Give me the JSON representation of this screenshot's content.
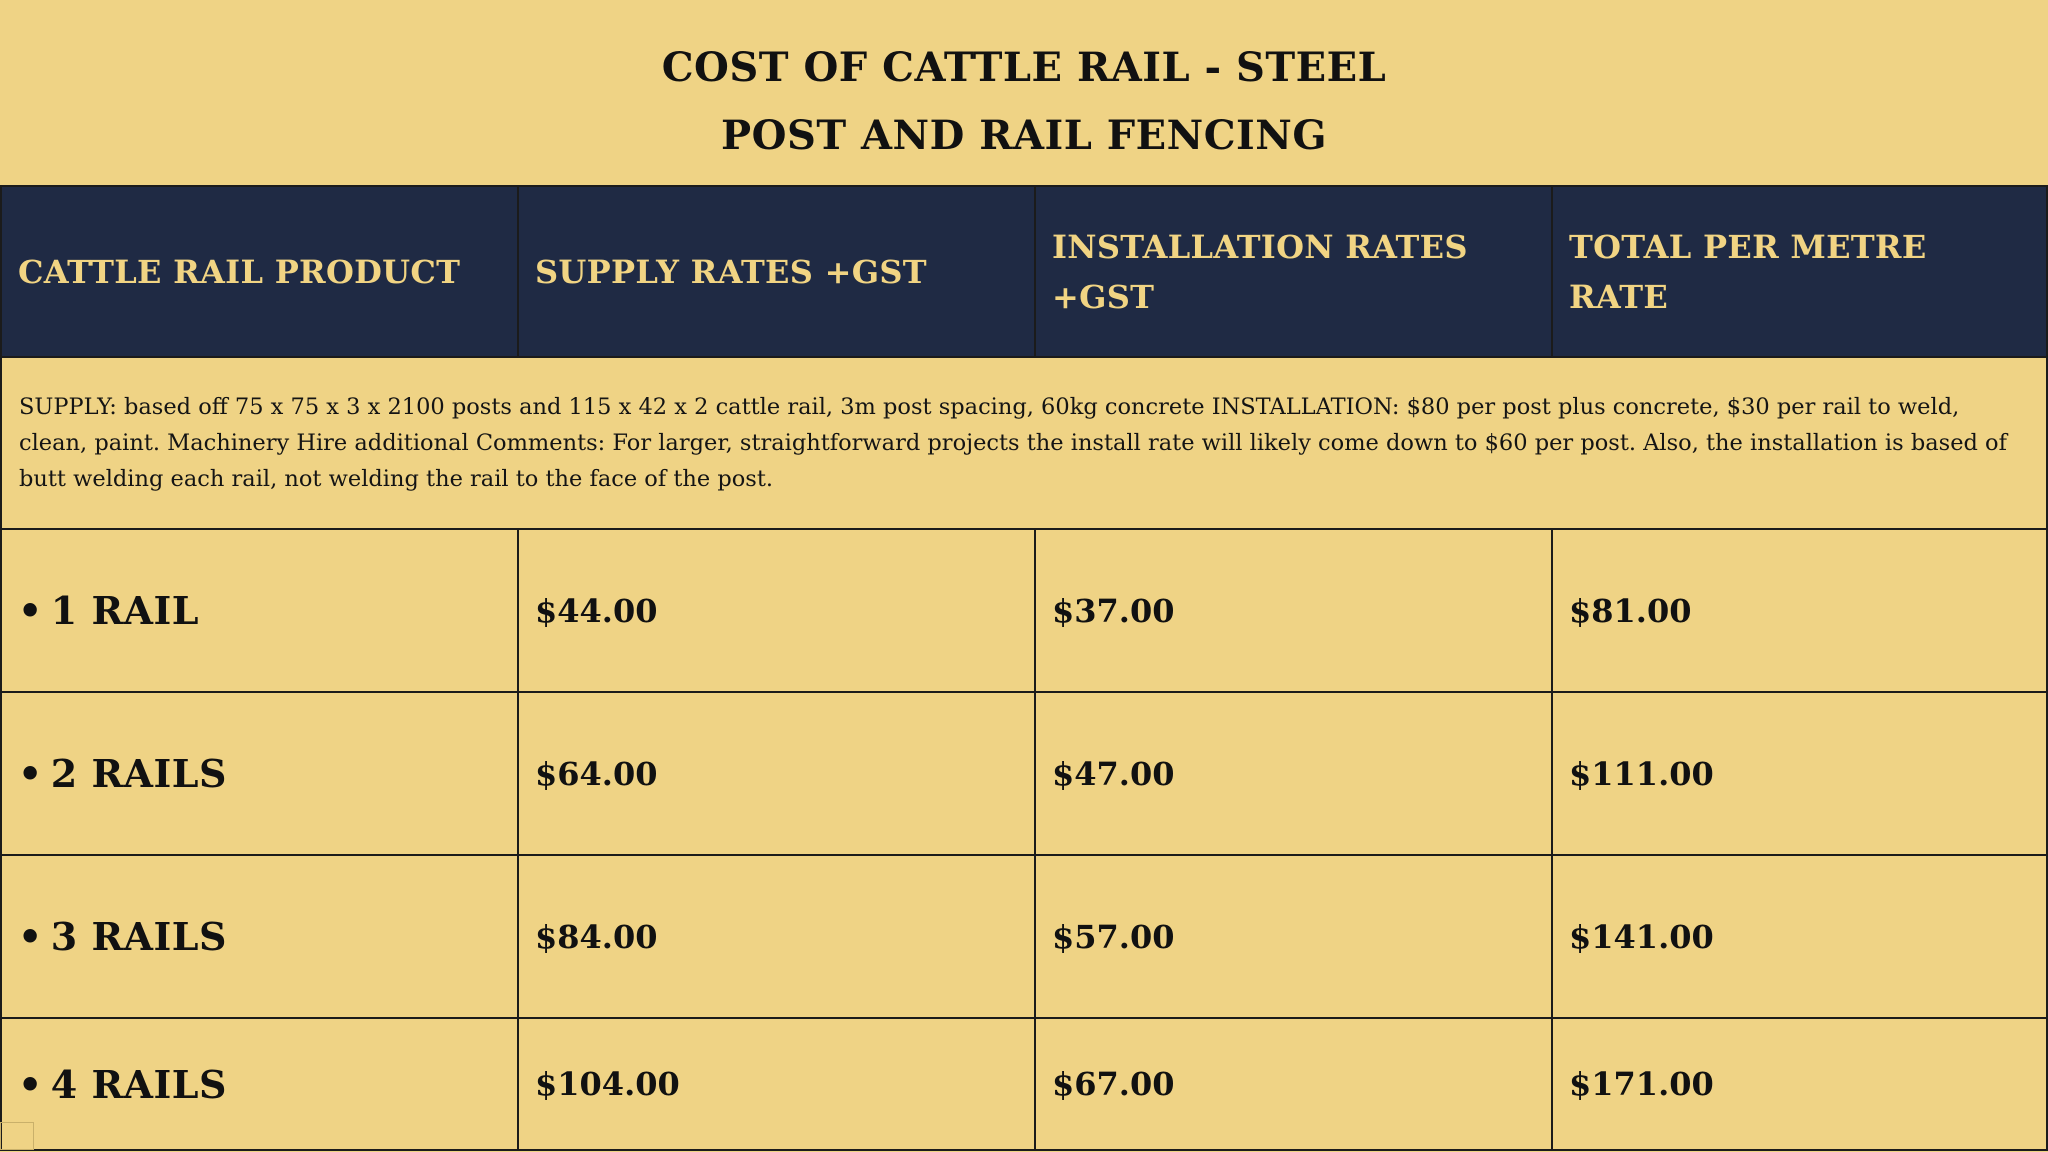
{
  "title": {
    "line1": "COST OF CATTLE RAIL - STEEL",
    "line2": "POST AND RAIL FENCING"
  },
  "table": {
    "headers": [
      "CATTLE RAIL PRODUCT",
      "SUPPLY RATES +GST",
      "INSTALLATION RATES +GST",
      "TOTAL PER METRE RATE"
    ],
    "note": "SUPPLY: based off 75 x 75 x 3 x 2100 posts and 115 x 42 x 2 cattle rail, 3m post spacing, 60kg concrete INSTALLATION:  $80 per post plus concrete, $30 per rail to weld, clean, paint. Machinery Hire additional  Comments:  For larger, straightforward projects the install rate will likely come down to $60 per post.  Also, the installation is based of butt welding each rail, not welding the rail to the face of the post.",
    "bullet": "•",
    "rows": [
      {
        "product": "1 RAIL",
        "supply": "$44.00",
        "installation": "$37.00",
        "total": "$81.00"
      },
      {
        "product": "2 RAILS",
        "supply": "$64.00",
        "installation": "$47.00",
        "total": "$111.00"
      },
      {
        "product": "3 RAILS",
        "supply": "$84.00",
        "installation": "$57.00",
        "total": "$141.00"
      },
      {
        "product": "4 RAILS",
        "supply": "$104.00",
        "installation": "$67.00",
        "total": "$171.00"
      }
    ]
  },
  "colors": {
    "background": "#efd385",
    "header_background": "#1f2a44",
    "header_text": "#f1d483",
    "text": "#111111"
  }
}
